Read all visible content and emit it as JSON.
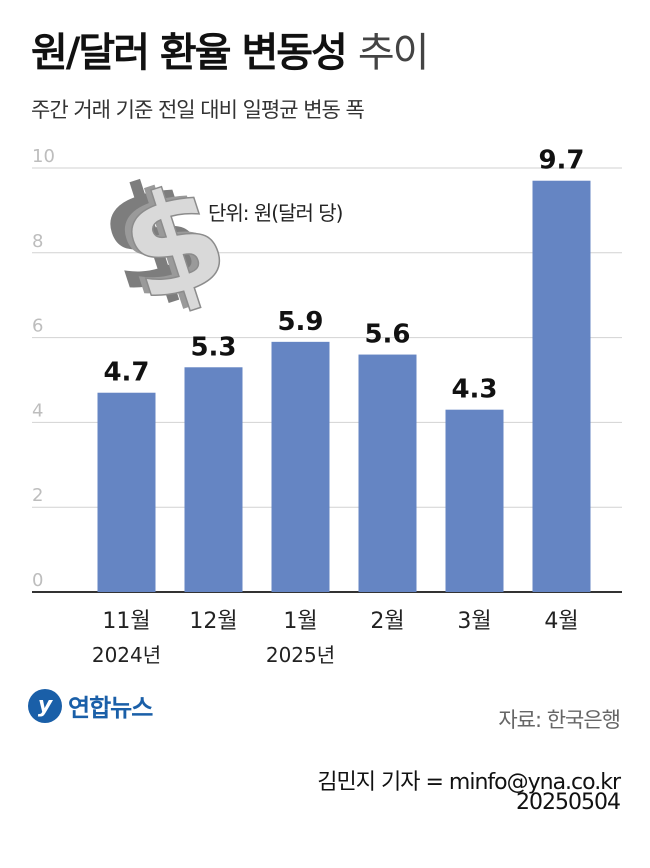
{
  "title_bold": "원/달러 환율 변동성",
  "title_light": "추이",
  "subtitle": "주간 거래 기준 전일 대비 일평균 변동 폭",
  "unit_label": "단위: 원(달러 당)",
  "dollar_icon": "dollar-sign-icon",
  "chart_data": {
    "type": "bar",
    "categories": [
      "11월",
      "12월",
      "1월",
      "2월",
      "3월",
      "4월"
    ],
    "category_sublabels": [
      "2024년",
      "",
      "2025년",
      "",
      "",
      ""
    ],
    "values": [
      4.7,
      5.3,
      5.9,
      5.6,
      4.3,
      9.7
    ],
    "value_labels": [
      "4.7",
      "5.3",
      "5.9",
      "5.6",
      "4.3",
      "9.7"
    ],
    "ylim": [
      0,
      10
    ],
    "yticks": [
      0,
      2,
      4,
      6,
      8,
      10
    ],
    "grid": true,
    "bar_color": "#6585c3"
  },
  "logo_text": "연합뉴스",
  "source": "자료: 한국은행",
  "credit": "김민지 기자 = minfo@yna.co.kr",
  "date": "20250504"
}
